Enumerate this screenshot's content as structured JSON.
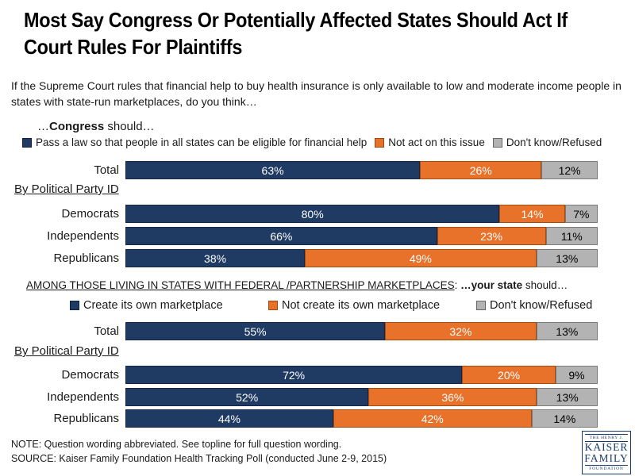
{
  "title": "Most Say Congress Or Potentially Affected States Should Act If Court Rules For Plaintiffs",
  "subtitle": "If the Supreme Court rules that financial help to buy health insurance is only available to low and moderate income people in states with state-run marketplaces, do you think…",
  "sections": [
    {
      "heading_pre": "…",
      "heading_bold": "Congress",
      "heading_post": " should…",
      "subgroup_label": "By Political Party ID"
    },
    {
      "heading_caps": "AMONG THOSE LIVING IN STATES WITH FEDERAL /PARTNERSHIP MARKETPLACES",
      "heading_colon": ": ",
      "heading_bold": "…your state",
      "heading_post": " should…",
      "subgroup_label": "By Political Party ID"
    }
  ],
  "chart_data": [
    {
      "type": "bar",
      "stacked": true,
      "orientation": "horizontal",
      "title": "…Congress should…",
      "categories": [
        "Total",
        "Democrats",
        "Independents",
        "Republicans"
      ],
      "series": [
        {
          "name": "Pass a law so that people in all states can be eligible for financial help",
          "values": [
            63,
            80,
            66,
            38
          ]
        },
        {
          "name": "Not act on this issue",
          "values": [
            26,
            14,
            23,
            49
          ]
        },
        {
          "name": "Don't know/Refused",
          "values": [
            12,
            7,
            11,
            13
          ]
        }
      ],
      "value_suffix": "%",
      "group_note": "By Political Party ID",
      "legend_position": "top"
    },
    {
      "type": "bar",
      "stacked": true,
      "orientation": "horizontal",
      "title": "AMONG THOSE LIVING IN STATES WITH FEDERAL /PARTNERSHIP MARKETPLACES: …your state should…",
      "categories": [
        "Total",
        "Democrats",
        "Independents",
        "Republicans"
      ],
      "series": [
        {
          "name": "Create its own marketplace",
          "values": [
            55,
            72,
            52,
            44
          ]
        },
        {
          "name": "Not create its own marketplace",
          "values": [
            32,
            20,
            36,
            42
          ]
        },
        {
          "name": "Don't know/Refused",
          "values": [
            13,
            9,
            13,
            14
          ]
        }
      ],
      "value_suffix": "%",
      "group_note": "By Political Party ID",
      "legend_position": "top"
    }
  ],
  "colors": {
    "series": [
      "#1f3a63",
      "#e8722a",
      "#b3b3b3"
    ],
    "series_borders": [
      "#13264a",
      "#a34c12",
      "#7a7a7a"
    ],
    "label_colors": [
      "#ffffff",
      "#ffffff",
      "#000000"
    ]
  },
  "note": "NOTE: Question wording abbreviated.  See topline for full question wording.",
  "source": "SOURCE: Kaiser Family Foundation Health Tracking Poll (conducted June 2-9, 2015)",
  "logo": {
    "line1": "THE HENRY J.",
    "line2": "KAISER",
    "line3": "FAMILY",
    "line4": "FOUNDATION"
  }
}
